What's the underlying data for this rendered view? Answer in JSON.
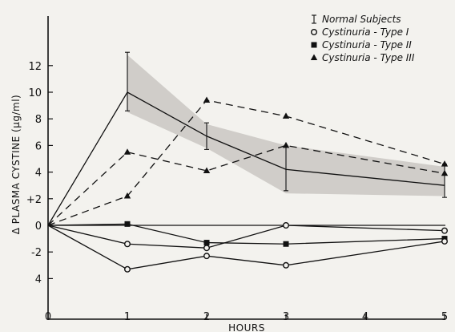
{
  "chart_data": {
    "type": "line",
    "title": "",
    "xlabel": "HOURS",
    "ylabel": "Δ PLASMA CYSTINE (μg/ml)",
    "xlim": [
      0,
      5
    ],
    "ylim": [
      -5,
      13
    ],
    "x_ticks": [
      0,
      1,
      2,
      3,
      4,
      5
    ],
    "y_ticks": [
      {
        "value": 12,
        "label": "12"
      },
      {
        "value": 10,
        "label": "10"
      },
      {
        "value": 8,
        "label": "8"
      },
      {
        "value": 6,
        "label": "6"
      },
      {
        "value": 4,
        "label": "4"
      },
      {
        "value": 2,
        "label": "+2"
      },
      {
        "value": 0,
        "label": "0"
      },
      {
        "value": -2,
        "label": "-2"
      },
      {
        "value": -4,
        "label": "4"
      }
    ],
    "legend_position": "top-right",
    "legend": [
      {
        "label": "Normal Subjects",
        "marker": "errorbar"
      },
      {
        "label": "Cystinuria - Type  I",
        "marker": "circle"
      },
      {
        "label": "Cystinuria - Type  II",
        "marker": "square"
      },
      {
        "label": "Cystinuria - Type  III",
        "marker": "triangle"
      }
    ],
    "band": {
      "x": [
        1,
        2,
        3,
        5
      ],
      "low": [
        8.5,
        5.8,
        2.4,
        2.2
      ],
      "high": [
        12.8,
        7.6,
        6.0,
        4.4
      ]
    },
    "series": [
      {
        "legend_index": 0,
        "marker": "none",
        "style": "solid",
        "x": [
          0,
          1,
          2,
          3,
          5
        ],
        "y": [
          0,
          10.0,
          6.7,
          4.2,
          3.0
        ],
        "error": [
          null,
          [
            8.6,
            13.0
          ],
          [
            5.7,
            7.7
          ],
          [
            2.6,
            5.9
          ],
          [
            2.1,
            4.6
          ]
        ]
      },
      {
        "legend_index": 3,
        "marker": "triangle",
        "style": "dashed",
        "x": [
          0,
          1,
          2,
          3,
          5
        ],
        "y": [
          0,
          5.5,
          4.1,
          6.0,
          3.9
        ]
      },
      {
        "legend_index": 3,
        "marker": "triangle",
        "style": "dashed",
        "x": [
          0,
          1,
          2,
          3,
          5
        ],
        "y": [
          0,
          2.2,
          9.4,
          8.2,
          4.6
        ]
      },
      {
        "legend_index": 2,
        "marker": "square",
        "style": "solid",
        "x": [
          0,
          1,
          2,
          3,
          5
        ],
        "y": [
          0,
          0.1,
          -1.3,
          -1.4,
          -1.0
        ]
      },
      {
        "legend_index": 1,
        "marker": "circle",
        "style": "solid",
        "x": [
          0,
          1,
          2,
          3,
          5
        ],
        "y": [
          0,
          -1.4,
          -1.7,
          0.0,
          -0.4
        ]
      },
      {
        "legend_index": 1,
        "marker": "circle",
        "style": "solid",
        "x": [
          0,
          1,
          2,
          3,
          5
        ],
        "y": [
          0,
          -3.3,
          -2.3,
          -3.0,
          -1.2
        ]
      }
    ]
  }
}
